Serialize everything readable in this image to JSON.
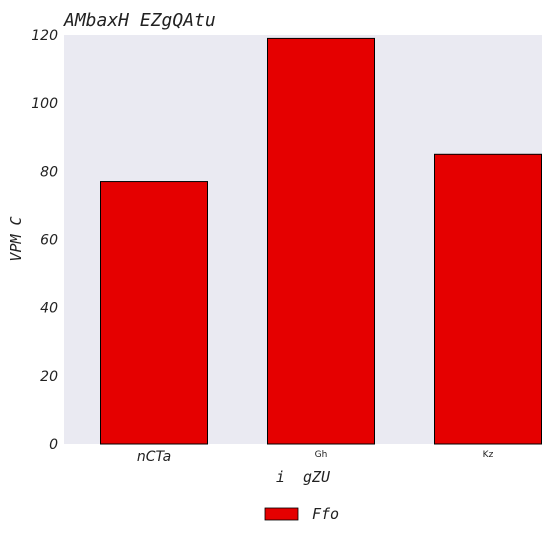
{
  "chart_data": {
    "type": "bar",
    "title": "AMbaxH EZgQAtu",
    "xlabel": "i  gZU",
    "ylabel": "VPM C",
    "categories": [
      "nCTa",
      "Gh",
      "Kz"
    ],
    "series": [
      {
        "name": "Ffo",
        "values": [
          77,
          119,
          85
        ],
        "color": "#e50000"
      }
    ],
    "ylim": [
      0,
      120
    ],
    "yticks": [
      0,
      20,
      40,
      60,
      80,
      100,
      120
    ],
    "grid": false,
    "legend_position": "bottom-center",
    "plot_background": "#eaeaf2",
    "bar_edge_color": "#000000"
  }
}
